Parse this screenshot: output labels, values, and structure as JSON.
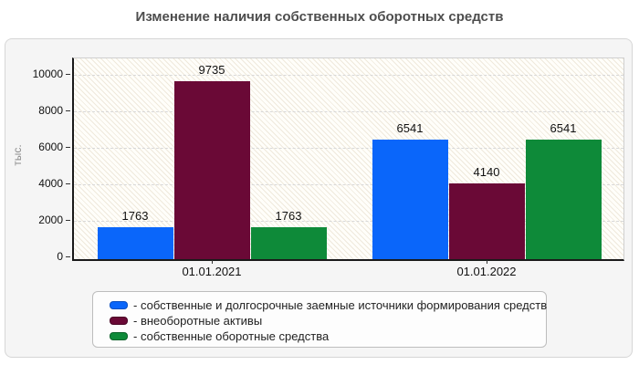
{
  "title": "Изменение наличия собственных оборотных средств",
  "chart_data": {
    "type": "bar",
    "title": "Изменение наличия собственных оборотных средств",
    "categories": [
      "01.01.2021",
      "01.01.2022"
    ],
    "series": [
      {
        "name": "собственные и долгосрочные заемные источники формирования средств",
        "legend_label": "- собственные и долгосрочные заемные источники формирования средств",
        "color": "#0a66fa",
        "border_color": "#0a4fc0",
        "values": [
          1763,
          6541
        ]
      },
      {
        "name": "внеоборотные активы",
        "legend_label": "- внеоборотные активы",
        "color": "#6a0936",
        "border_color": "#4a0626",
        "values": [
          9735,
          4140
        ]
      },
      {
        "name": "собственные оборотные средства",
        "legend_label": "- собственные оборотные средства",
        "color": "#0e8a39",
        "border_color": "#0a6128",
        "values": [
          1763,
          6541
        ]
      }
    ],
    "xlabel": "",
    "ylabel": "тыс.",
    "yticks": [
      0,
      2000,
      4000,
      6000,
      8000,
      10000
    ],
    "ylim": [
      0,
      10600
    ],
    "grid": "horizontal-dashed",
    "legend_position": "bottom"
  }
}
